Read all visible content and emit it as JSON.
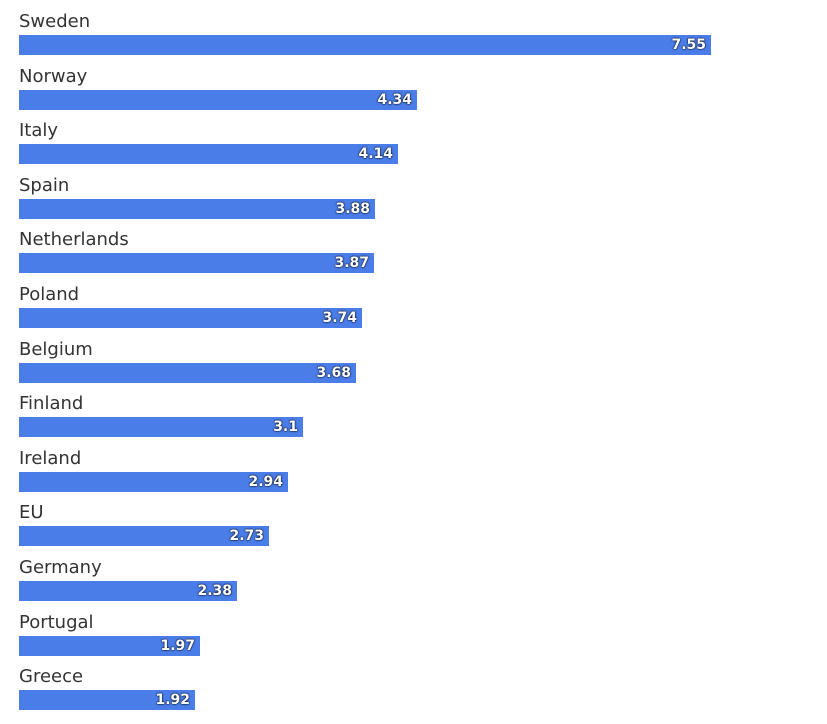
{
  "chart_data": {
    "type": "bar",
    "orientation": "horizontal",
    "categories": [
      "Sweden",
      "Norway",
      "Italy",
      "Spain",
      "Netherlands",
      "Poland",
      "Belgium",
      "Finland",
      "Ireland",
      "EU",
      "Germany",
      "Portugal",
      "Greece"
    ],
    "values": [
      7.55,
      4.34,
      4.14,
      3.88,
      3.87,
      3.74,
      3.68,
      3.1,
      2.94,
      2.73,
      2.38,
      1.97,
      1.92
    ],
    "value_labels": [
      "7.55",
      "4.34",
      "4.14",
      "3.88",
      "3.87",
      "3.74",
      "3.68",
      "3.1",
      "2.94",
      "2.73",
      "2.38",
      "1.97",
      "1.92"
    ],
    "title": "",
    "xlabel": "",
    "ylabel": "",
    "xlim": [
      0,
      8
    ],
    "grid": false,
    "legend": "none",
    "bar_color": "#4a7de8",
    "label_color": "#333333"
  }
}
